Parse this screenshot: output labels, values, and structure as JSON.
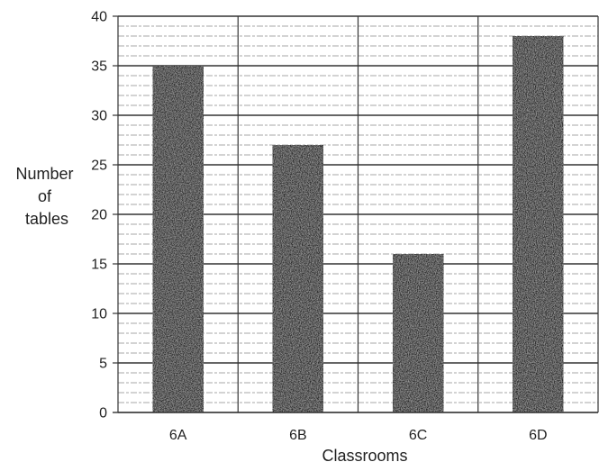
{
  "chart_data": {
    "type": "bar",
    "categories": [
      "6A",
      "6B",
      "6C",
      "6D"
    ],
    "values": [
      35,
      27,
      16,
      38
    ],
    "title": "",
    "xlabel": "Classrooms",
    "ylabel_lines": [
      "Number",
      "of",
      "tables"
    ],
    "ylim": [
      0,
      40
    ],
    "yticks": [
      0,
      5,
      10,
      15,
      20,
      25,
      30,
      35,
      40
    ],
    "ytick_labels": [
      "0",
      "5",
      "10",
      "15",
      "20",
      "25",
      "30",
      "35",
      "40"
    ],
    "minor_grid_step": 1,
    "grid": true,
    "legend": "none",
    "bar_color": "#2b2b2b",
    "grid_color": "#8a8a8a"
  }
}
